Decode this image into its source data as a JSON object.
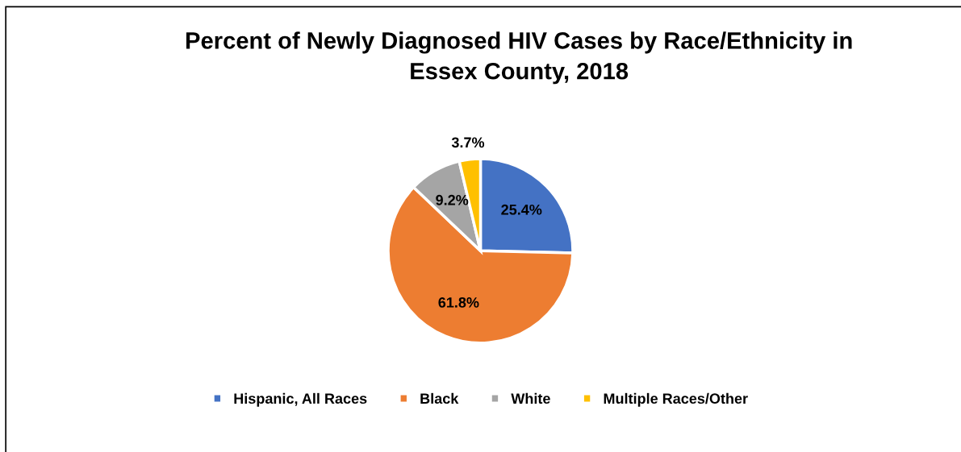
{
  "chart_data": {
    "type": "pie",
    "title": "Percent of Newly Diagnosed HIV Cases by Race/Ethnicity in\nEssex County, 2018",
    "categories": [
      "Hispanic, All Races",
      "Black",
      "White",
      "Multiple Races/Other"
    ],
    "values": [
      25.4,
      61.8,
      9.2,
      3.7
    ],
    "colors": [
      "#4472c4",
      "#ed7d31",
      "#a5a5a5",
      "#ffc000"
    ],
    "value_labels": [
      "25.4%",
      "61.8%",
      "9.2%",
      "3.7%"
    ],
    "legend": "bottom"
  }
}
